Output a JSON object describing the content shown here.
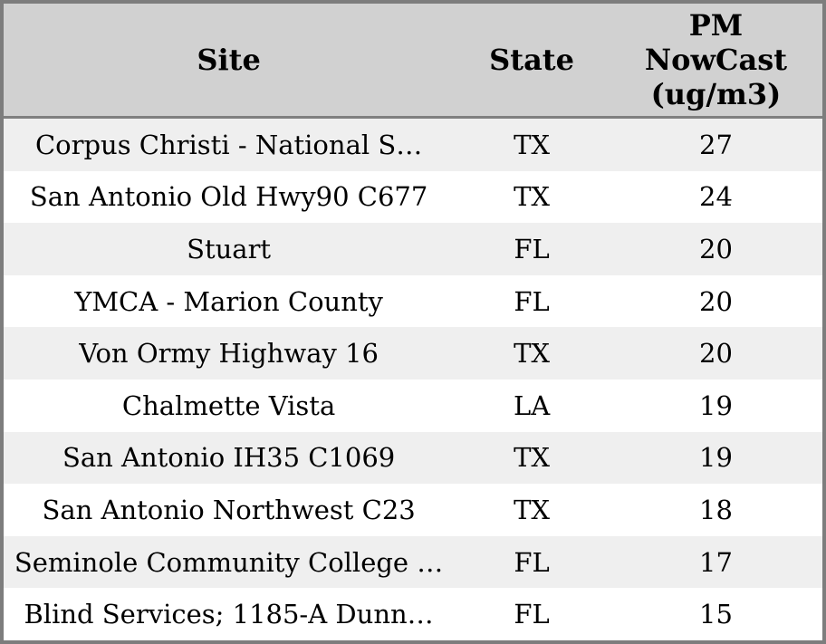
{
  "colors": {
    "panel_border": "#7d7d7d",
    "header_background": "#d1d1d1",
    "header_separator": "#808080",
    "row_stripe": "#efefef",
    "row_background": "#ffffff",
    "text": "#000000"
  },
  "table": {
    "columns": [
      {
        "label": "Site"
      },
      {
        "label": "State"
      },
      {
        "label": "PM NowCast (ug/m3)"
      }
    ],
    "rows": [
      {
        "site": "Corpus Christi - National S…",
        "state": "TX",
        "pm_nowcast": 27
      },
      {
        "site": "San Antonio Old Hwy90 C677",
        "state": "TX",
        "pm_nowcast": 24
      },
      {
        "site": "Stuart",
        "state": "FL",
        "pm_nowcast": 20
      },
      {
        "site": "YMCA - Marion County",
        "state": "FL",
        "pm_nowcast": 20
      },
      {
        "site": "Von Ormy Highway 16",
        "state": "TX",
        "pm_nowcast": 20
      },
      {
        "site": "Chalmette Vista",
        "state": "LA",
        "pm_nowcast": 19
      },
      {
        "site": "San Antonio IH35 C1069",
        "state": "TX",
        "pm_nowcast": 19
      },
      {
        "site": "San Antonio Northwest C23",
        "state": "TX",
        "pm_nowcast": 18
      },
      {
        "site": "Seminole Community College …",
        "state": "FL",
        "pm_nowcast": 17
      },
      {
        "site": "Blind Services; 1185-A Dunn…",
        "state": "FL",
        "pm_nowcast": 15
      }
    ]
  }
}
